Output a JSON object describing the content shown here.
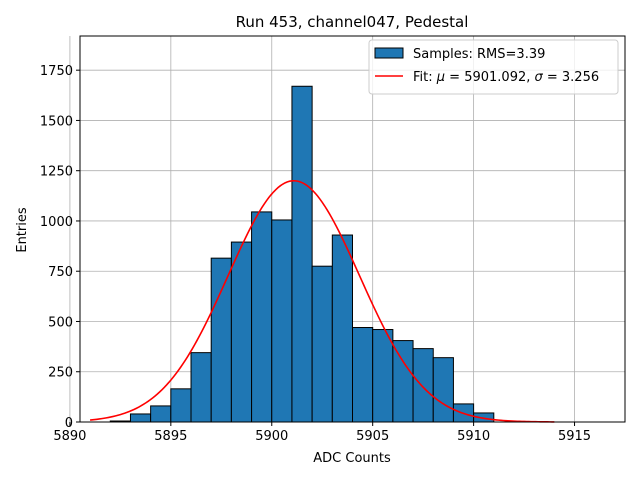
{
  "chart_data": {
    "type": "bar",
    "title": "Run 453, channel047, Pedestal",
    "xlabel": "ADC Counts",
    "ylabel": "Entries",
    "xlim": [
      5890.5,
      5917.5
    ],
    "ylim": [
      0,
      1920
    ],
    "xticks": [
      5890,
      5895,
      5900,
      5905,
      5910,
      5915
    ],
    "yticks": [
      0,
      250,
      500,
      750,
      1000,
      1250,
      1500,
      1750
    ],
    "grid": true,
    "legend_position": "top-right",
    "colors": {
      "bar": "#1f77b4",
      "bar_edge": "#000000",
      "fit": "#ff0000",
      "grid": "#b0b0b0"
    },
    "histogram": {
      "name": "Samples: RMS=3.39",
      "bin_edges": [
        5892,
        5893,
        5894,
        5895,
        5896,
        5897,
        5898,
        5899,
        5900,
        5901,
        5902,
        5903,
        5904,
        5905,
        5906,
        5907,
        5908,
        5909,
        5910,
        5911
      ],
      "counts": [
        5,
        40,
        80,
        165,
        345,
        815,
        895,
        1045,
        1005,
        1670,
        775,
        930,
        470,
        460,
        405,
        365,
        320,
        90,
        45
      ]
    },
    "fit": {
      "name_prefix": "Fit: ",
      "mu_symbol": "μ",
      "mu_text": " = 5901.092, ",
      "sigma_symbol": "σ",
      "sigma_text": " = 3.256",
      "mu": 5901.092,
      "sigma": 3.256,
      "amplitude": 1200,
      "x_range": [
        5891,
        5914
      ]
    }
  }
}
